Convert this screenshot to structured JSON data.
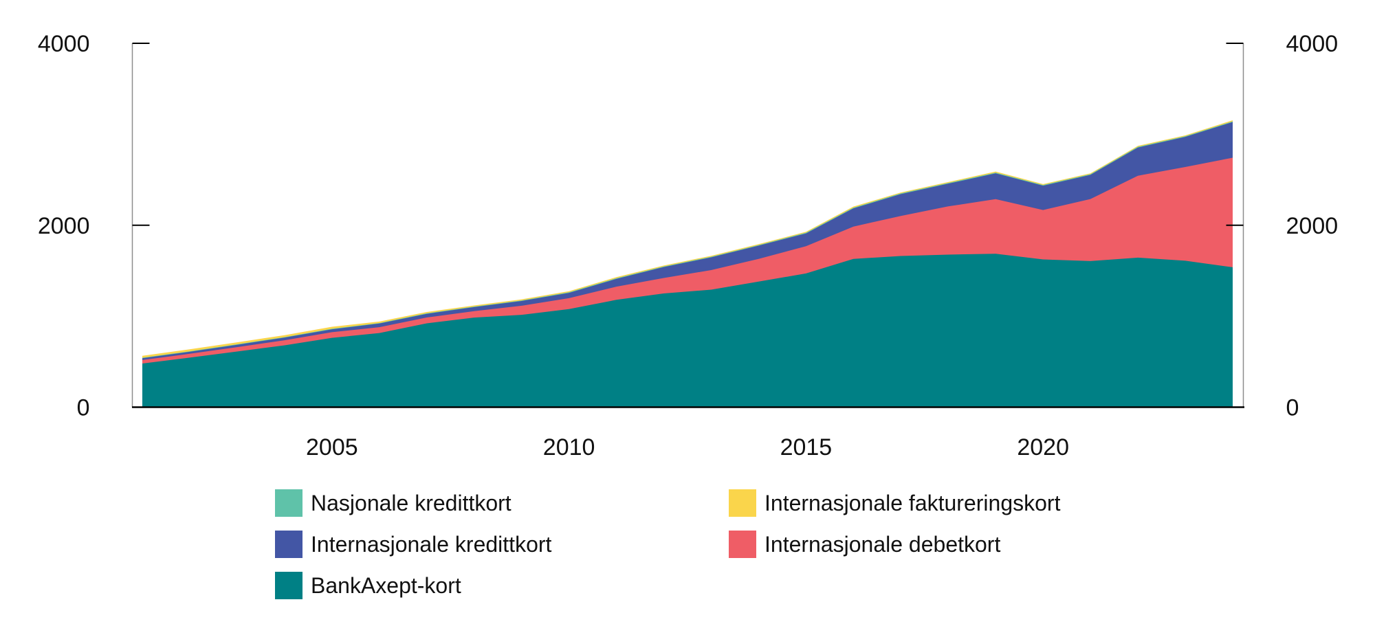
{
  "page": {
    "background": "#ffffff"
  },
  "chart_data": {
    "type": "area",
    "stacked": true,
    "title": "",
    "xlabel": "",
    "ylabel": "",
    "x": [
      2001,
      2002,
      2003,
      2004,
      2005,
      2006,
      2007,
      2008,
      2009,
      2010,
      2011,
      2012,
      2013,
      2014,
      2015,
      2016,
      2017,
      2018,
      2019,
      2020,
      2021,
      2022,
      2023,
      2024
    ],
    "series": [
      {
        "name": "BankAxept-kort",
        "color": "#008085",
        "values": [
          480,
          545,
          612,
          680,
          762,
          815,
          922,
          985,
          1015,
          1078,
          1180,
          1250,
          1292,
          1380,
          1470,
          1630,
          1662,
          1677,
          1687,
          1624,
          1606,
          1644,
          1610,
          1538
        ]
      },
      {
        "name": "Internasjonale debetkort",
        "color": "#EF5D66",
        "values": [
          38,
          42,
          48,
          56,
          62,
          64,
          64,
          70,
          100,
          120,
          145,
          170,
          215,
          250,
          300,
          355,
          440,
          530,
          600,
          543,
          682,
          900,
          1030,
          1204
        ]
      },
      {
        "name": "Internasjonale kredittkort",
        "color": "#4356A5",
        "values": [
          20,
          22,
          26,
          29,
          32,
          40,
          40,
          45,
          52,
          58,
          85,
          120,
          140,
          145,
          140,
          200,
          240,
          250,
          283,
          267,
          265,
          310,
          330,
          392
        ]
      },
      {
        "name": "Nasjonale kredittkort",
        "color": "#5FC2A9",
        "values": [
          5,
          5,
          5,
          5,
          6,
          6,
          6,
          6,
          6,
          7,
          7,
          7,
          7,
          7,
          8,
          8,
          8,
          8,
          8,
          8,
          8,
          8,
          8,
          8
        ]
      },
      {
        "name": "Internasjonale faktureringskort",
        "color": "#FAD54B",
        "values": [
          22,
          22,
          22,
          22,
          22,
          16,
          14,
          12,
          12,
          12,
          12,
          10,
          10,
          10,
          10,
          12,
          10,
          10,
          12,
          10,
          10,
          10,
          10,
          12
        ]
      }
    ],
    "ylim": [
      0,
      4000
    ],
    "yticks": [
      0,
      2000,
      4000
    ],
    "ytick_labels": [
      "0",
      "2000",
      "4000"
    ],
    "xticks": [
      2005,
      2010,
      2015,
      2020
    ],
    "xtick_labels": [
      "2005",
      "2010",
      "2015",
      "2020"
    ],
    "grid": false,
    "y_axis_both_sides": true,
    "legend_position": "bottom"
  },
  "legend": {
    "columns": [
      {
        "items": [
          {
            "label": "Nasjonale kredittkort",
            "color": "#5FC2A9"
          },
          {
            "label": "Internasjonale kredittkort",
            "color": "#4356A5"
          },
          {
            "label": "BankAxept-kort",
            "color": "#008085"
          }
        ]
      },
      {
        "items": [
          {
            "label": "Internasjonale faktureringskort",
            "color": "#FAD54B"
          },
          {
            "label": "Internasjonale debetkort",
            "color": "#EF5D66"
          }
        ]
      }
    ]
  },
  "colors": {
    "axis_line": "#8c8c8c",
    "baseline": "#000000",
    "tick": "#000000",
    "text": "#111111"
  }
}
